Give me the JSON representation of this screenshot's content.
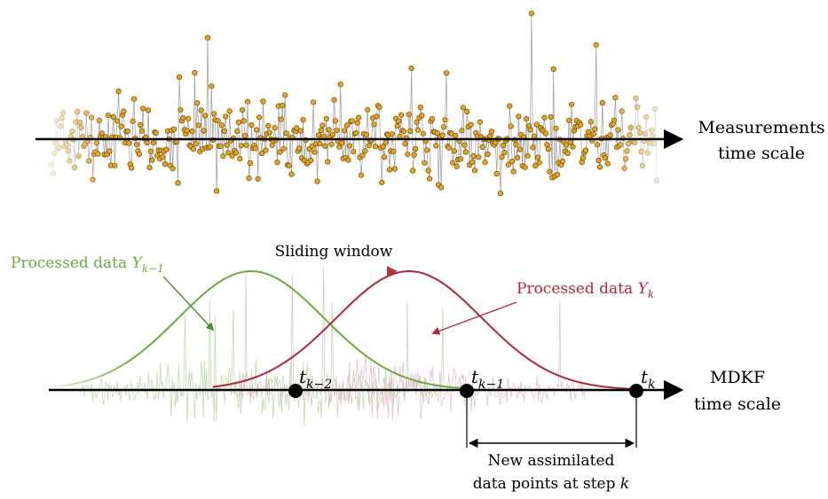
{
  "measurements": {
    "label_line1": "Measurements",
    "label_line2": "time scale",
    "marker_color": "#e8a317",
    "signal_color": "#9a9a9a"
  },
  "sliding_window": {
    "label": "Sliding window",
    "color_start": "#7cb342",
    "color_end": "#b23a3a"
  },
  "processed_prev": {
    "label": "Processed data ",
    "symbol": "Y",
    "subscript": "k−1",
    "color": "#6bab3a"
  },
  "processed_curr": {
    "label": "Processed data ",
    "symbol": "Y",
    "subscript": "k",
    "color": "#b3263a"
  },
  "mdkf": {
    "label_line1": "MDKF",
    "label_line2": "time scale"
  },
  "time_points": [
    {
      "symbol": "t",
      "subscript": "k−2"
    },
    {
      "symbol": "t",
      "subscript": "k−1"
    },
    {
      "symbol": "t",
      "subscript": "k"
    }
  ],
  "assimilated": {
    "label_line1": "New assimilated",
    "label_line2_prefix": "data points at step ",
    "label_line2_var": "k"
  }
}
